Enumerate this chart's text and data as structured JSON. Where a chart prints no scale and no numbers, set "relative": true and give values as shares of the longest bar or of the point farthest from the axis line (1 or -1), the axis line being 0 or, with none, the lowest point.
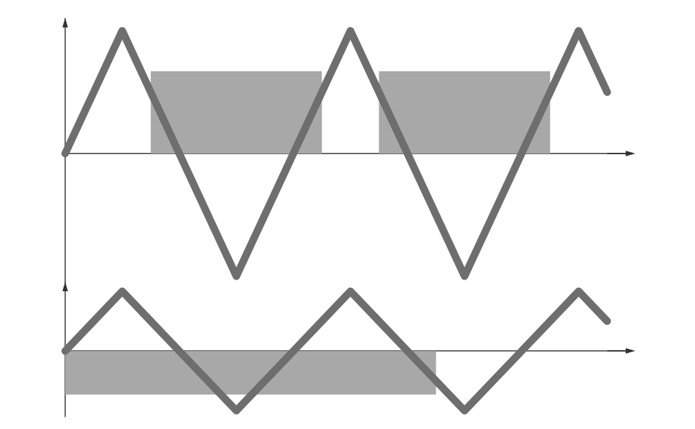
{
  "chart_data": [
    {
      "type": "line",
      "relative": true,
      "categories": [
        null,
        null,
        null,
        null,
        null,
        null,
        null,
        null,
        null,
        null,
        null,
        null,
        null,
        null,
        null,
        null,
        null,
        null,
        null,
        null
      ],
      "series": [
        {
          "type": "area",
          "color": "#a8a8a8",
          "values": [
            null,
            null,
            null,
            0.67,
            0.67,
            0.67,
            0.67,
            0.67,
            0.67,
            0.67,
            null,
            0.67,
            0.67,
            0.67,
            0.67,
            0.67,
            0.67,
            0.67,
            null,
            null
          ]
        },
        {
          "type": "line",
          "color": "#6e6e6e",
          "values": [
            0,
            0.5,
            1,
            0.5,
            0,
            -0.5,
            -1,
            -0.5,
            0,
            0.5,
            1,
            0.5,
            0,
            -0.5,
            -1,
            -0.5,
            0,
            0.5,
            1,
            0.5
          ]
        }
      ],
      "line_style": "solid",
      "grid": false
    },
    {
      "type": "line",
      "relative": true,
      "categories": [
        null,
        null,
        null,
        null,
        null,
        null,
        null,
        null,
        null,
        null,
        null,
        null,
        null,
        null,
        null,
        null,
        null,
        null,
        null,
        null
      ],
      "series": [
        {
          "type": "area",
          "color": "#a8a8a8",
          "values": [
            -0.73,
            -0.73,
            -0.73,
            -0.73,
            -0.73,
            -0.73,
            -0.73,
            -0.73,
            -0.73,
            -0.73,
            -0.73,
            -0.73,
            -0.73,
            -0.73,
            null,
            null,
            null,
            null,
            null,
            null
          ]
        },
        {
          "type": "line",
          "color": "#6e6e6e",
          "values": [
            0,
            0.5,
            1,
            0.5,
            0,
            -0.5,
            -1,
            -0.5,
            0,
            0.5,
            1,
            0.5,
            0,
            -0.5,
            -1,
            -0.5,
            0,
            0.5,
            1,
            0.5
          ]
        }
      ],
      "line_style": "solid",
      "grid": false
    }
  ]
}
